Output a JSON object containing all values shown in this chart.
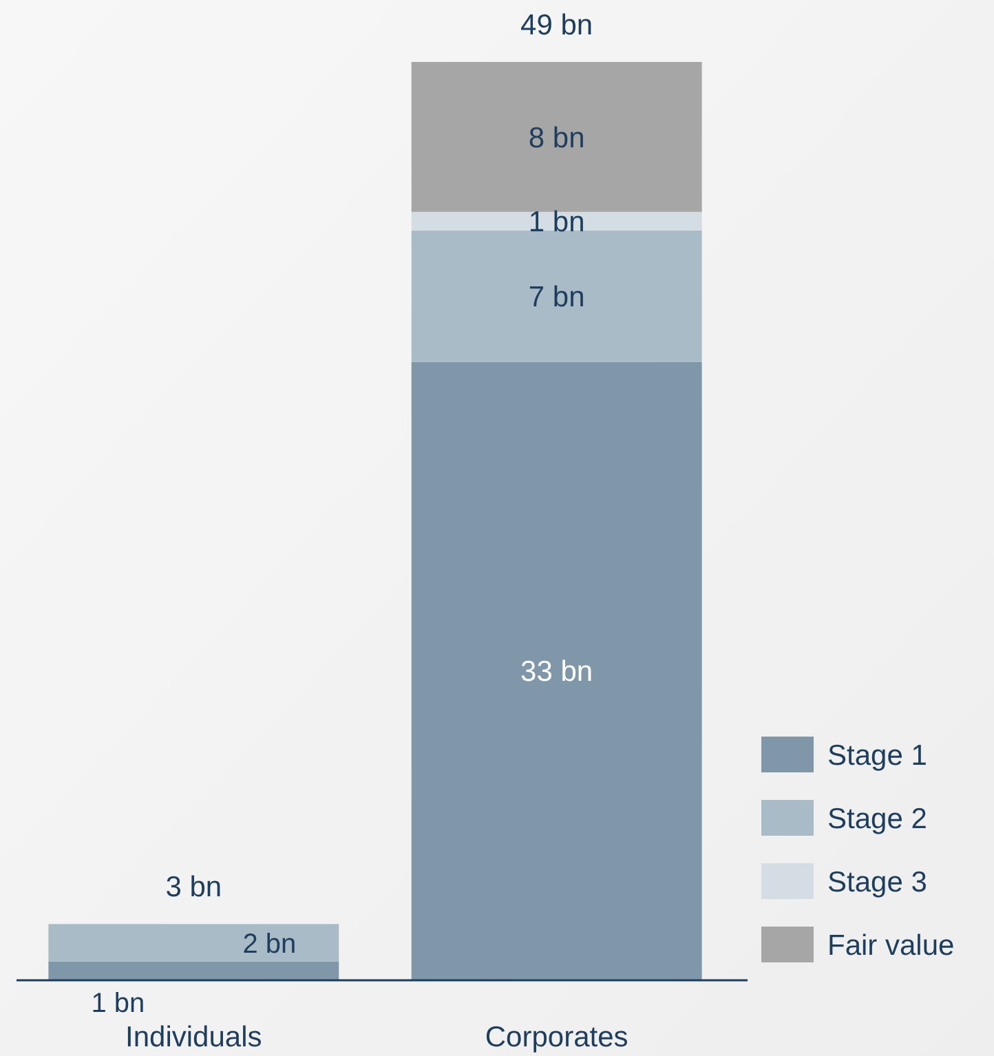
{
  "chart_data": {
    "type": "bar",
    "stacked": true,
    "categories": [
      "Individuals",
      "Corporates"
    ],
    "series": [
      {
        "name": "Stage 1",
        "color": "#7f97a8",
        "values": [
          1,
          33
        ],
        "value_labels": [
          "1 bn",
          "33 bn"
        ]
      },
      {
        "name": "Stage 2",
        "color": "#a9bbc7",
        "values": [
          2,
          7
        ],
        "value_labels": [
          "2 bn",
          "7 bn"
        ]
      },
      {
        "name": "Stage 3",
        "color": "#d3dde3",
        "values": [
          null,
          1
        ],
        "value_labels": [
          null,
          "1 bn"
        ]
      },
      {
        "name": "Fair value",
        "color": "#a6a6a6",
        "values": [
          null,
          8
        ],
        "value_labels": [
          null,
          "8 bn"
        ]
      }
    ],
    "totals": [
      "3 bn",
      "49 bn"
    ],
    "legend": "right"
  }
}
